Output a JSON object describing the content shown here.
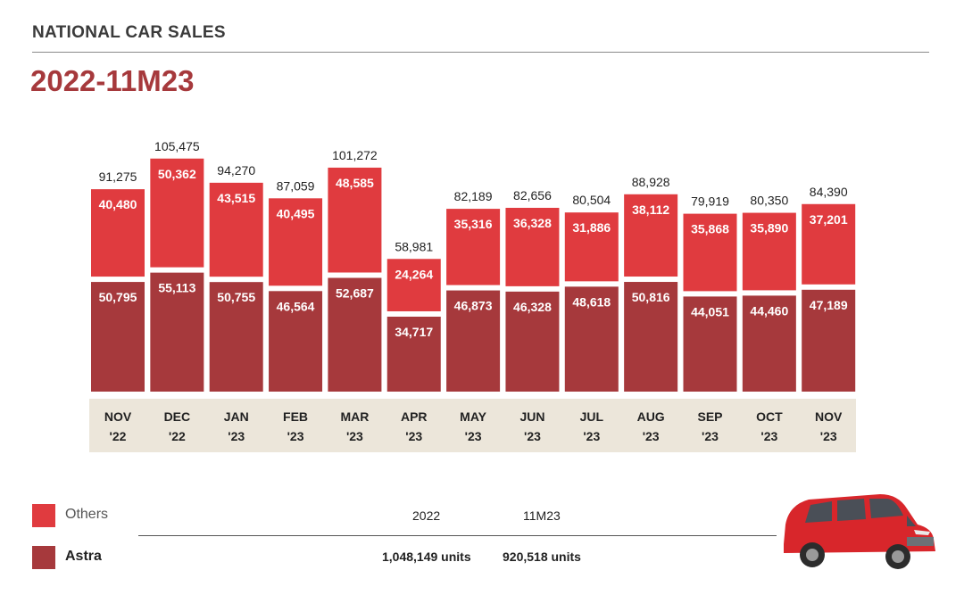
{
  "header": {
    "title": "NATIONAL CAR SALES",
    "subtitle": "2022-11M23"
  },
  "colors": {
    "others": "#e03b3f",
    "astra": "#a6393c",
    "band": "#ece6da",
    "title": "#a6393c"
  },
  "chart_data": {
    "type": "bar",
    "stacked": true,
    "categories": [
      [
        "NOV",
        "'22"
      ],
      [
        "DEC",
        "'22"
      ],
      [
        "JAN",
        "'23"
      ],
      [
        "FEB",
        "'23"
      ],
      [
        "MAR",
        "'23"
      ],
      [
        "APR",
        "'23"
      ],
      [
        "MAY",
        "'23"
      ],
      [
        "JUN",
        "'23"
      ],
      [
        "JUL",
        "'23"
      ],
      [
        "AUG",
        "'23"
      ],
      [
        "SEP",
        "'23"
      ],
      [
        "OCT",
        "'23"
      ],
      [
        "NOV",
        "'23"
      ]
    ],
    "series": [
      {
        "name": "Astra",
        "values": [
          50795,
          55113,
          50755,
          46564,
          52687,
          34717,
          46873,
          46328,
          48618,
          50816,
          44051,
          44460,
          47189
        ]
      },
      {
        "name": "Others",
        "values": [
          40480,
          50362,
          43515,
          40495,
          48585,
          24264,
          35316,
          36328,
          31886,
          38112,
          35868,
          35890,
          37201
        ]
      }
    ],
    "totals": [
      91275,
      105475,
      94270,
      87059,
      101272,
      58981,
      82189,
      82656,
      80504,
      88928,
      79919,
      80350,
      84390
    ],
    "ylim": [
      0,
      110000
    ]
  },
  "legend": {
    "others": "Others",
    "astra": "Astra"
  },
  "summary": {
    "col1_header": "2022",
    "col2_header": "11M23",
    "col1_value": "1,048,149 units",
    "col2_value": "920,518 units"
  }
}
